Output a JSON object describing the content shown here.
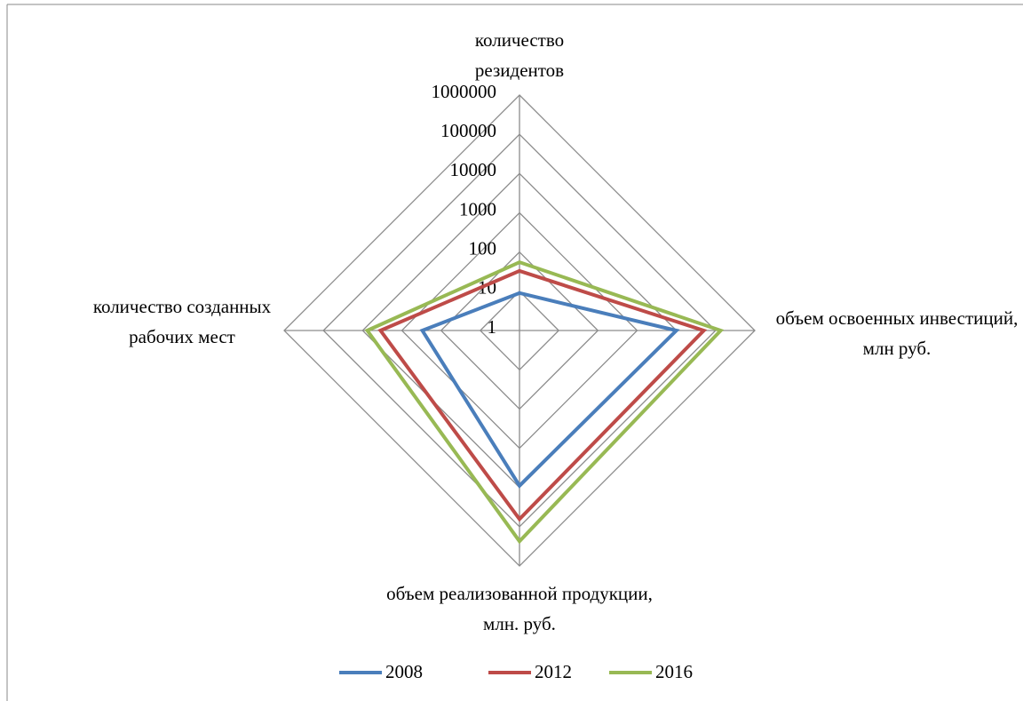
{
  "chart_data": {
    "type": "radar",
    "categories": [
      "количество резидентов",
      "объем освоенных инвестиций, млн руб.",
      "объем реализованной продукции, млн. руб.",
      "количество созданных рабочих мест"
    ],
    "series": [
      {
        "name": "2008",
        "color": "#4a7ebb",
        "values": [
          9,
          10000,
          9000,
          300
        ]
      },
      {
        "name": "2012",
        "color": "#be4b48",
        "values": [
          33,
          50000,
          64000,
          3500
        ]
      },
      {
        "name": "2016",
        "color": "#98b954",
        "values": [
          55,
          135000,
          235000,
          7600
        ]
      }
    ],
    "rlim": [
      1,
      1000000
    ],
    "rticks": [
      1,
      10,
      100,
      1000,
      10000,
      100000,
      1000000
    ],
    "log": true,
    "grid": true,
    "legend": "bottom"
  }
}
